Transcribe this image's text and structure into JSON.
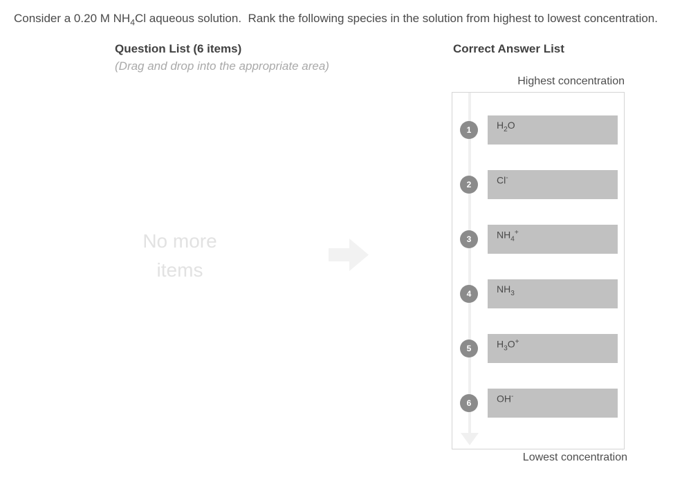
{
  "prompt": "Consider a 0.20 M NH~4~Cl aqueous solution.  Rank the following species in the solution from highest to lowest concentration.",
  "question_list": {
    "heading": "Question List (6 items)",
    "hint": "(Drag and drop into the appropriate area)",
    "empty_text": "No more items"
  },
  "answer_list": {
    "heading": "Correct Answer List",
    "top_label": "Highest concentration",
    "bottom_label": "Lowest concentration",
    "items": [
      {
        "rank": "1",
        "formula": "H~2~O"
      },
      {
        "rank": "2",
        "formula": "Cl^-^"
      },
      {
        "rank": "3",
        "formula": "NH~4~^+^"
      },
      {
        "rank": "4",
        "formula": "NH~3~"
      },
      {
        "rank": "5",
        "formula": "H~3~O^+^"
      },
      {
        "rank": "6",
        "formula": "OH^-^"
      }
    ]
  },
  "icons": {
    "transfer_arrow": "right-block-arrow",
    "rank_direction_arrow": "down-arrow"
  },
  "colors": {
    "text_dark": "#4a4a4a",
    "heading": "#414141",
    "hint_gray": "#a9a9a9",
    "empty_text_gray": "#e2e2e2",
    "transfer_arrow_gray": "#f2f2f2",
    "box_border": "#d4d4d4",
    "rank_circle_gray": "#8b8b8b",
    "slot_gray": "#c1c1c1",
    "timeline_gray": "#f0f0f0"
  }
}
